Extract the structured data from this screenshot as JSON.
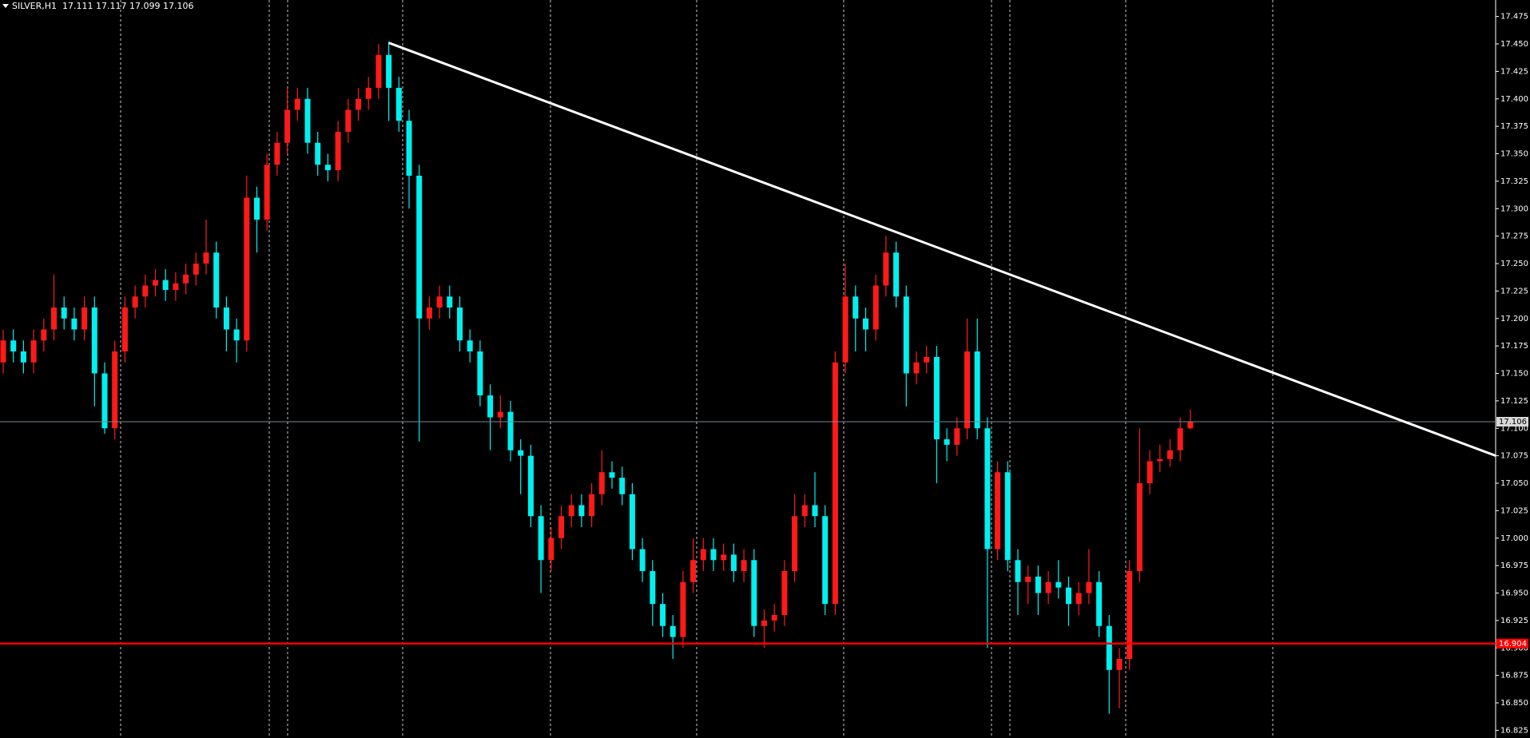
{
  "chart_data": {
    "type": "candlestick",
    "title": "SILVER,H1  17.111 17.117 17.099 17.106",
    "up_color": "#ff1a1a",
    "down_color": "#00f0f0",
    "ylim": [
      16.818,
      17.49
    ],
    "yticks": [
      16.825,
      {
        "value": 16.85,
        "label": "16.850"
      },
      16.875,
      {
        "value": 16.9,
        "label": "16.900"
      },
      16.925,
      {
        "value": 16.95,
        "label": "16.950"
      },
      16.975,
      {
        "value": 17,
        "label": "17.000"
      },
      17.025,
      {
        "value": 17.05,
        "label": "17.050"
      },
      17.075,
      {
        "value": 17.1,
        "label": "17.100"
      },
      17.125,
      {
        "value": 17.15,
        "label": "17.150"
      },
      17.175,
      {
        "value": 17.2,
        "label": "17.200"
      },
      17.225,
      {
        "value": 17.25,
        "label": "17.250"
      },
      17.275,
      {
        "value": 17.3,
        "label": "17.300"
      },
      17.325,
      {
        "value": 17.35,
        "label": "17.350"
      },
      17.375,
      {
        "value": 17.4,
        "label": "17.400"
      },
      17.425,
      {
        "value": 17.45,
        "label": "17.450"
      },
      17.475
    ],
    "open": [
      17.16,
      17.18,
      17.17,
      17.16,
      17.18,
      17.19,
      17.21,
      17.2,
      17.19,
      17.21,
      17.15,
      17.1,
      17.17,
      17.21,
      17.22,
      17.23,
      17.235,
      17.226,
      17.232,
      17.24,
      17.25,
      17.26,
      17.21,
      17.19,
      17.18,
      17.31,
      17.29,
      17.34,
      17.36,
      17.39,
      17.4,
      17.36,
      17.34,
      17.335,
      17.37,
      17.39,
      17.4,
      17.41,
      17.44,
      17.41,
      17.38,
      17.33,
      17.2,
      17.21,
      17.22,
      17.21,
      17.18,
      17.17,
      17.13,
      17.11,
      17.115,
      17.08,
      17.075,
      17.02,
      16.98,
      17.0,
      17.02,
      17.03,
      17.02,
      17.04,
      17.06,
      17.055,
      17.04,
      16.99,
      16.97,
      16.94,
      16.92,
      16.91,
      16.96,
      16.98,
      16.99,
      16.98,
      16.985,
      16.97,
      16.98,
      16.92,
      16.925,
      16.93,
      16.97,
      17.02,
      17.03,
      17.02,
      16.94,
      17.16,
      17.22,
      17.2,
      17.19,
      17.23,
      17.26,
      17.22,
      17.15,
      17.16,
      17.165,
      17.09,
      17.085,
      17.1,
      17.17,
      17.1,
      16.99,
      17.06,
      16.98,
      16.96,
      16.965,
      16.95,
      16.96,
      16.955,
      16.94,
      16.95,
      16.96,
      16.92,
      16.88,
      16.89,
      16.97,
      17.05,
      17.07,
      17.072,
      17.08,
      17.1
    ],
    "high": [
      17.19,
      17.19,
      17.18,
      17.19,
      17.2,
      17.24,
      17.22,
      17.21,
      17.22,
      17.22,
      17.16,
      17.18,
      17.22,
      17.23,
      17.24,
      17.245,
      17.245,
      17.242,
      17.25,
      17.26,
      17.29,
      17.27,
      17.22,
      17.2,
      17.33,
      17.32,
      17.35,
      17.37,
      17.41,
      17.41,
      17.41,
      17.37,
      17.35,
      17.38,
      17.4,
      17.41,
      17.42,
      17.45,
      17.452,
      17.42,
      17.39,
      17.34,
      17.22,
      17.23,
      17.23,
      17.22,
      17.19,
      17.18,
      17.14,
      17.13,
      17.125,
      17.09,
      17.085,
      17.03,
      17.01,
      17.03,
      17.04,
      17.04,
      17.05,
      17.08,
      17.07,
      17.065,
      17.05,
      17.0,
      16.98,
      16.95,
      16.93,
      16.97,
      17.0,
      17.0,
      17.0,
      16.995,
      16.995,
      16.99,
      16.99,
      16.935,
      16.94,
      16.98,
      17.04,
      17.04,
      17.06,
      17.03,
      17.17,
      17.25,
      17.23,
      17.21,
      17.24,
      17.275,
      17.27,
      17.23,
      17.17,
      17.175,
      17.175,
      17.1,
      17.11,
      17.2,
      17.2,
      17.11,
      17.07,
      17.07,
      16.99,
      16.975,
      16.975,
      16.97,
      16.98,
      16.965,
      16.96,
      16.99,
      16.97,
      16.93,
      16.9,
      16.98,
      17.1,
      17.08,
      17.085,
      17.09,
      17.11,
      17.117
    ],
    "low": [
      17.15,
      17.16,
      17.15,
      17.15,
      17.17,
      17.18,
      17.19,
      17.18,
      17.18,
      17.12,
      17.095,
      17.09,
      17.16,
      17.2,
      17.21,
      17.22,
      17.216,
      17.216,
      17.222,
      17.23,
      17.24,
      17.2,
      17.17,
      17.16,
      17.17,
      17.26,
      17.28,
      17.33,
      17.35,
      17.38,
      17.35,
      17.33,
      17.325,
      17.325,
      17.36,
      17.38,
      17.39,
      17.4,
      17.38,
      17.37,
      17.3,
      17.088,
      17.19,
      17.2,
      17.2,
      17.17,
      17.16,
      17.12,
      17.08,
      17.1,
      17.07,
      17.04,
      17.01,
      16.95,
      16.97,
      16.99,
      17.01,
      17.01,
      17.01,
      17.03,
      17.045,
      17.03,
      16.98,
      16.96,
      16.92,
      16.91,
      16.89,
      16.9,
      16.95,
      16.97,
      16.97,
      16.97,
      16.96,
      16.96,
      16.91,
      16.9,
      16.915,
      16.92,
      16.96,
      17.01,
      17.01,
      16.93,
      16.93,
      17.15,
      17.17,
      17.17,
      17.18,
      17.22,
      17.21,
      17.12,
      17.14,
      17.15,
      17.05,
      17.07,
      17.075,
      17.09,
      17.09,
      16.9,
      16.98,
      16.97,
      16.93,
      16.94,
      16.93,
      16.94,
      16.945,
      16.92,
      16.93,
      16.94,
      16.91,
      16.84,
      16.845,
      16.88,
      16.96,
      17.04,
      17.06,
      17.065,
      17.07,
      17.099
    ],
    "close": [
      17.18,
      17.17,
      17.16,
      17.18,
      17.19,
      17.21,
      17.2,
      17.19,
      17.21,
      17.15,
      17.1,
      17.17,
      17.21,
      17.22,
      17.23,
      17.235,
      17.226,
      17.232,
      17.24,
      17.25,
      17.26,
      17.21,
      17.19,
      17.18,
      17.31,
      17.29,
      17.34,
      17.36,
      17.39,
      17.4,
      17.36,
      17.34,
      17.335,
      17.37,
      17.39,
      17.4,
      17.41,
      17.44,
      17.41,
      17.38,
      17.33,
      17.2,
      17.21,
      17.22,
      17.21,
      17.18,
      17.17,
      17.13,
      17.11,
      17.115,
      17.08,
      17.075,
      17.02,
      16.98,
      17.0,
      17.02,
      17.03,
      17.02,
      17.04,
      17.06,
      17.055,
      17.04,
      16.99,
      16.97,
      16.94,
      16.92,
      16.91,
      16.96,
      16.98,
      16.99,
      16.98,
      16.985,
      16.97,
      16.98,
      16.92,
      16.925,
      16.93,
      16.97,
      17.02,
      17.03,
      17.02,
      16.94,
      17.16,
      17.22,
      17.2,
      17.19,
      17.23,
      17.26,
      17.22,
      17.15,
      17.16,
      17.165,
      17.09,
      17.085,
      17.1,
      17.17,
      17.1,
      16.99,
      17.06,
      16.98,
      16.96,
      16.965,
      16.95,
      16.96,
      16.955,
      16.94,
      16.95,
      16.96,
      16.92,
      16.88,
      16.89,
      16.97,
      17.05,
      17.07,
      17.072,
      17.08,
      17.1,
      17.106
    ],
    "hlines": [
      {
        "value": 16.904,
        "color": "#ff0000"
      },
      {
        "value": 17.106,
        "color": "#778899"
      }
    ],
    "trendline": {
      "index": [
        38,
        147.1
      ],
      "prices": [
        17.451,
        17.075
      ],
      "color": "#ffffff"
    }
  }
}
